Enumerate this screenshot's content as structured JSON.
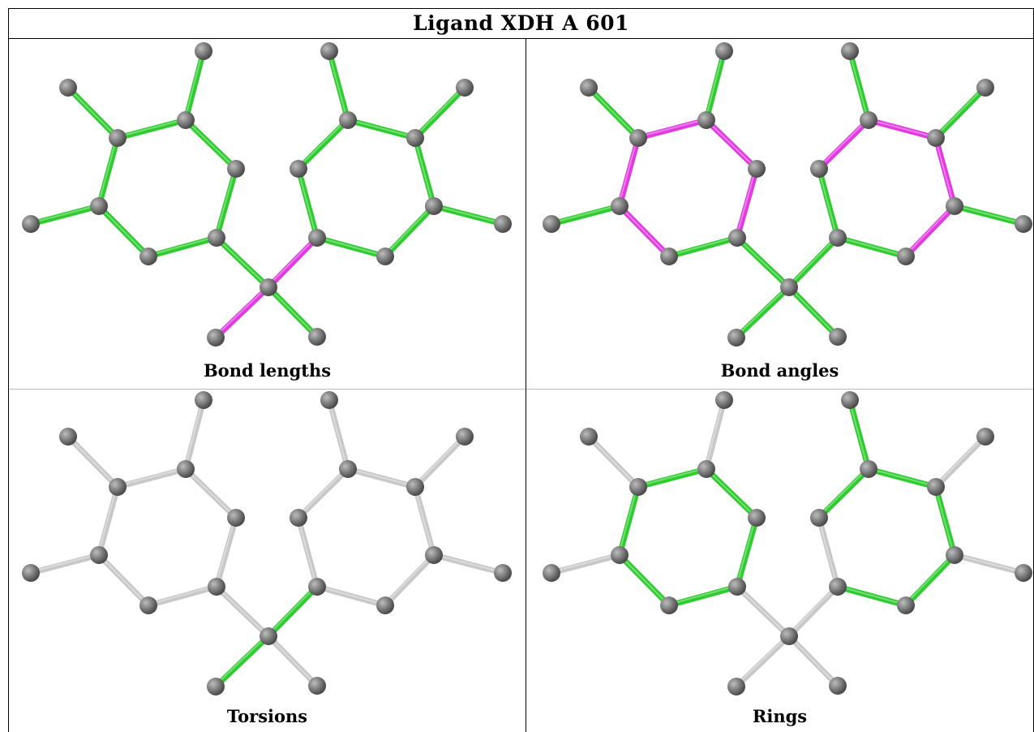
{
  "title": "Ligand XDH A 601",
  "panels": [
    {
      "caption": "Bond lengths",
      "highlight": "bond-lengths"
    },
    {
      "caption": "Bond angles",
      "highlight": "bond-angles"
    },
    {
      "caption": "Torsions",
      "highlight": "torsions"
    },
    {
      "caption": "Rings",
      "highlight": "rings"
    }
  ],
  "colors": {
    "green": "#2ecc2e",
    "magenta": "#e13ae1",
    "gray": "#c8c8c8",
    "atom": "#777777"
  }
}
